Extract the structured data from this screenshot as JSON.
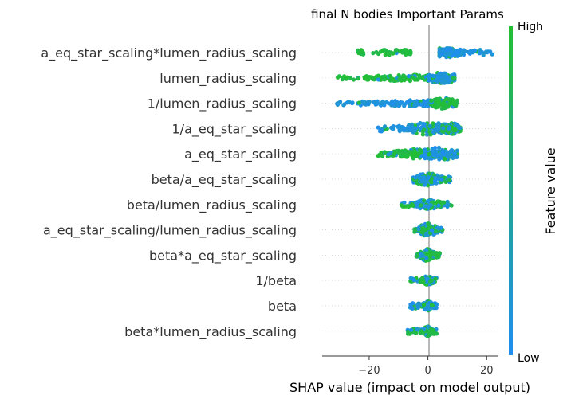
{
  "chart_data": {
    "type": "scatter",
    "subtype": "shap-beeswarm",
    "title": "final N bodies Important Params",
    "xlabel": "SHAP value (impact on model output)",
    "xlim": [
      -36,
      24
    ],
    "xticks": [
      -20,
      0,
      20
    ],
    "xtick_labels": [
      "−20",
      "0",
      "20"
    ],
    "grid": false,
    "colorbar": {
      "label": "Feature value",
      "high_label": "High",
      "low_label": "Low",
      "high_color": "#22bf33",
      "low_color": "#1f8ef1"
    },
    "features": [
      {
        "name": "a_eq_star_scaling*lumen_radius_scaling",
        "clusters": [
          {
            "lo": -24,
            "hi": -6,
            "c": 18,
            "s": 6,
            "amp": 7,
            "high": 0.92
          },
          {
            "lo": 4,
            "hi": 22,
            "c": 6,
            "s": 4,
            "amp": 6,
            "high": 0.1
          }
        ]
      },
      {
        "name": "lumen_radius_scaling",
        "clusters": [
          {
            "lo": -33,
            "hi": 0,
            "c": -6,
            "s": 10,
            "amp": 4,
            "high": 0.95
          },
          {
            "lo": 0,
            "hi": 9,
            "c": 5,
            "s": 3,
            "amp": 7,
            "high": 0.15
          }
        ]
      },
      {
        "name": "1/lumen_radius_scaling",
        "clusters": [
          {
            "lo": -31,
            "hi": 0,
            "c": -4,
            "s": 10,
            "amp": 4,
            "high": 0.05
          },
          {
            "lo": 1,
            "hi": 10,
            "c": 5,
            "s": 3,
            "amp": 7,
            "high": 0.85
          }
        ]
      },
      {
        "name": "1/a_eq_star_scaling",
        "clusters": [
          {
            "lo": -17,
            "hi": 10,
            "c": 0,
            "s": 5,
            "amp": 8,
            "high": 0.2
          },
          {
            "lo": 5,
            "hi": 11,
            "c": 8,
            "s": 2,
            "amp": 7,
            "high": 0.55
          }
        ]
      },
      {
        "name": "a_eq_star_scaling",
        "clusters": [
          {
            "lo": -17,
            "hi": 0,
            "c": -3,
            "s": 6,
            "amp": 6,
            "high": 0.85
          },
          {
            "lo": -1,
            "hi": 10,
            "c": 4,
            "s": 4,
            "amp": 8,
            "high": 0.15
          }
        ]
      },
      {
        "name": "beta/a_eq_star_scaling",
        "clusters": [
          {
            "lo": -5,
            "hi": 8,
            "c": 0,
            "s": 3,
            "amp": 8,
            "high": 0.3
          }
        ]
      },
      {
        "name": "beta/lumen_radius_scaling",
        "clusters": [
          {
            "lo": -9,
            "hi": 8,
            "c": 0,
            "s": 3,
            "amp": 6,
            "high": 0.4
          }
        ]
      },
      {
        "name": "a_eq_star_scaling/lumen_radius_scaling",
        "clusters": [
          {
            "lo": -5,
            "hi": 5,
            "c": 0,
            "s": 2,
            "amp": 8,
            "high": 0.5
          }
        ]
      },
      {
        "name": "beta*a_eq_star_scaling",
        "clusters": [
          {
            "lo": -4,
            "hi": 4,
            "c": 0,
            "s": 1.5,
            "amp": 8,
            "high": 0.5
          }
        ]
      },
      {
        "name": "1/beta",
        "clusters": [
          {
            "lo": -6,
            "hi": 3,
            "c": 0,
            "s": 1,
            "amp": 6,
            "high": 0.5
          }
        ]
      },
      {
        "name": "beta",
        "clusters": [
          {
            "lo": -6,
            "hi": 3,
            "c": 0,
            "s": 1,
            "amp": 6,
            "high": 0.3
          }
        ]
      },
      {
        "name": "beta*lumen_radius_scaling",
        "clusters": [
          {
            "lo": -7,
            "hi": 3,
            "c": 0,
            "s": 1,
            "amp": 6,
            "high": 0.6
          }
        ]
      }
    ]
  }
}
